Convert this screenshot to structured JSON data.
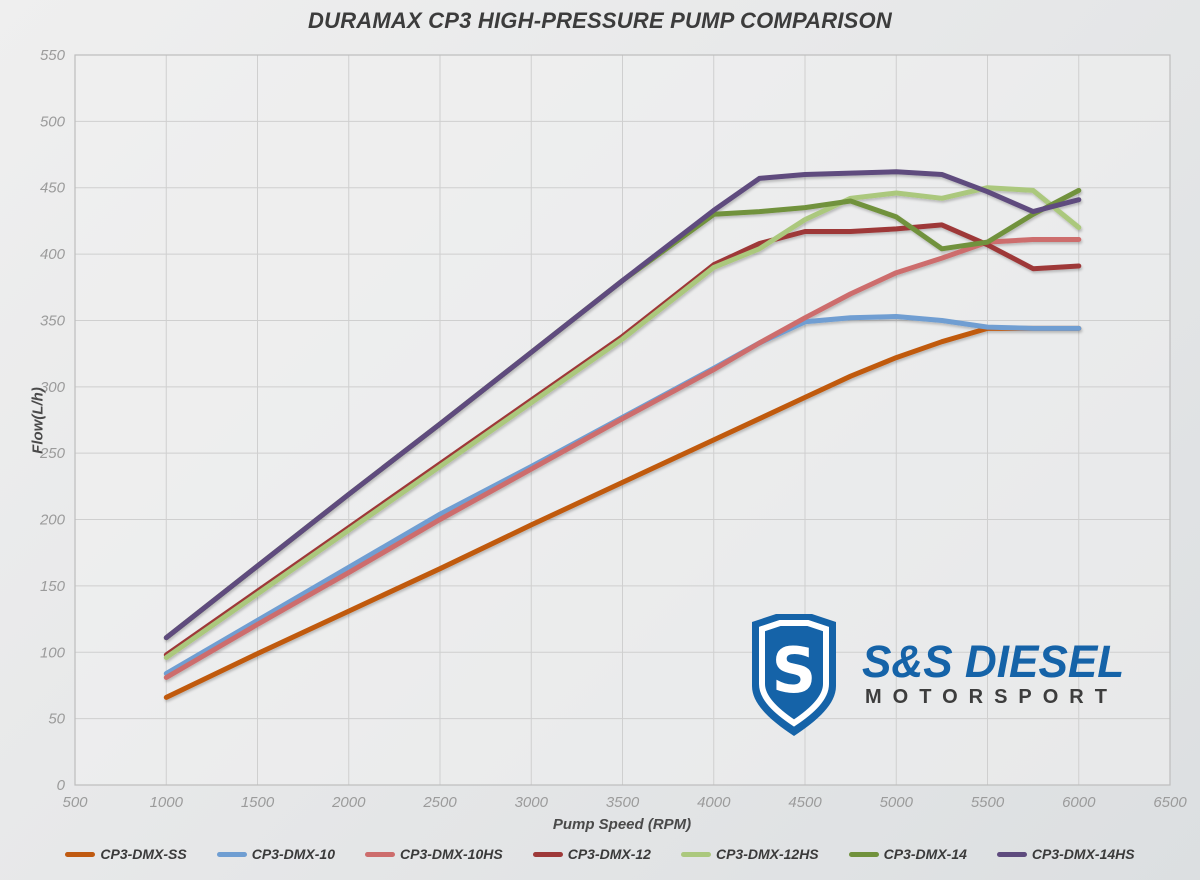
{
  "chart_data": {
    "type": "line",
    "title": "DURAMAX CP3 HIGH-PRESSURE PUMP COMPARISON",
    "xlabel": "Pump Speed (RPM)",
    "ylabel": "Flow(L/h)",
    "xlim": [
      500,
      6500
    ],
    "ylim": [
      0,
      550
    ],
    "x_ticks": [
      500,
      1000,
      1500,
      2000,
      2500,
      3000,
      3500,
      4000,
      4500,
      5000,
      5500,
      6000,
      6500
    ],
    "y_ticks": [
      0,
      50,
      100,
      150,
      200,
      250,
      300,
      350,
      400,
      450,
      500,
      550
    ],
    "grid": "on",
    "legend_position": "bottom",
    "x": [
      1000,
      1500,
      2000,
      2500,
      3000,
      3500,
      4000,
      4250,
      4500,
      4750,
      5000,
      5250,
      5500,
      5750,
      6000
    ],
    "series": [
      {
        "name": "CP3-DMX-SS",
        "color": "#c05a11",
        "values": [
          66,
          99,
          131,
          163,
          196,
          228,
          260,
          276,
          292,
          308,
          322,
          334,
          344,
          344,
          344
        ]
      },
      {
        "name": "CP3-DMX-10",
        "color": "#6f9ed2",
        "values": [
          84,
          124,
          164,
          204,
          240,
          277,
          314,
          333,
          349,
          352,
          353,
          350,
          345,
          344,
          344
        ]
      },
      {
        "name": "CP3-DMX-10HS",
        "color": "#cd6d6d",
        "values": [
          81,
          121,
          160,
          200,
          238,
          276,
          313,
          333,
          352,
          370,
          386,
          397,
          409,
          411,
          411
        ]
      },
      {
        "name": "CP3-DMX-12",
        "color": "#9e3939",
        "values": [
          98,
          146,
          194,
          242,
          290,
          338,
          392,
          408,
          417,
          417,
          419,
          422,
          407,
          389,
          391
        ]
      },
      {
        "name": "CP3-DMX-12HS",
        "color": "#abc87d",
        "values": [
          96,
          144,
          192,
          240,
          288,
          336,
          390,
          404,
          426,
          442,
          446,
          442,
          450,
          448,
          420
        ]
      },
      {
        "name": "CP3-DMX-14",
        "color": "#71923c",
        "values": [
          111,
          165,
          219,
          272,
          326,
          380,
          430,
          432,
          435,
          440,
          428,
          404,
          409,
          430,
          448
        ]
      },
      {
        "name": "CP3-DMX-14HS",
        "color": "#5e4b7e",
        "values": [
          111,
          165,
          219,
          272,
          326,
          380,
          433,
          457,
          460,
          461,
          462,
          460,
          447,
          432,
          441
        ]
      }
    ]
  },
  "logo": {
    "monogram": "S",
    "line1": "S&S DIESEL",
    "line2": "MOTORSPORT",
    "brand_blue": "#1563a8"
  },
  "style_colors": {
    "plot_background": "#f1f1f1",
    "gridline": "#cfcfcf",
    "plot_border": "#bdbdbd",
    "tick_text": "#9b9b9b",
    "title_text": "#3c3c3c"
  }
}
